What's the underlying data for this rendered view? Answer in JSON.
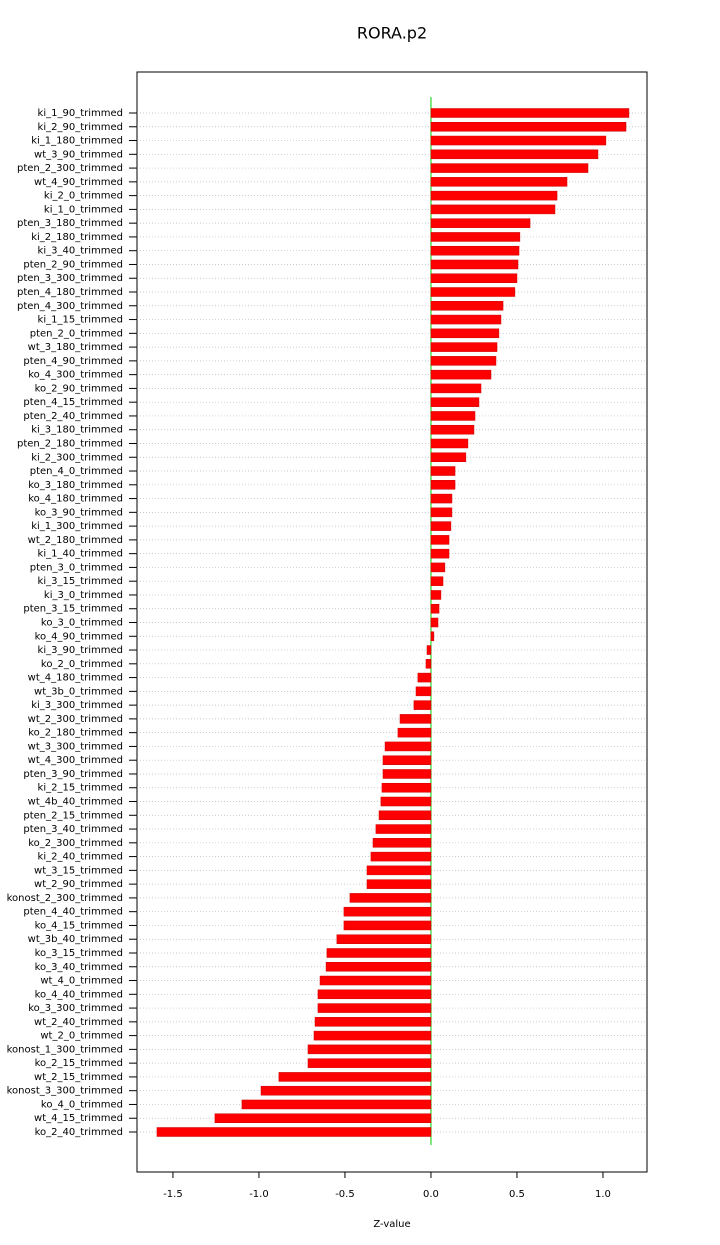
{
  "chart_data": {
    "type": "hbar",
    "title": "RORA.p2",
    "x_label": "Z-value",
    "categories": [
      "ki_1_90_trimmed",
      "ki_2_90_trimmed",
      "ki_1_180_trimmed",
      "wt_3_90_trimmed",
      "pten_2_300_trimmed",
      "wt_4_90_trimmed",
      "ki_2_0_trimmed",
      "ki_1_0_trimmed",
      "pten_3_180_trimmed",
      "ki_2_180_trimmed",
      "ki_3_40_trimmed",
      "pten_2_90_trimmed",
      "pten_3_300_trimmed",
      "pten_4_180_trimmed",
      "pten_4_300_trimmed",
      "ki_1_15_trimmed",
      "pten_2_0_trimmed",
      "wt_3_180_trimmed",
      "pten_4_90_trimmed",
      "ko_4_300_trimmed",
      "ko_2_90_trimmed",
      "pten_4_15_trimmed",
      "pten_2_40_trimmed",
      "ki_3_180_trimmed",
      "pten_2_180_trimmed",
      "ki_2_300_trimmed",
      "pten_4_0_trimmed",
      "ko_3_180_trimmed",
      "ko_4_180_trimmed",
      "ko_3_90_trimmed",
      "ki_1_300_trimmed",
      "wt_2_180_trimmed",
      "ki_1_40_trimmed",
      "pten_3_0_trimmed",
      "ki_3_15_trimmed",
      "ki_3_0_trimmed",
      "pten_3_15_trimmed",
      "ko_3_0_trimmed",
      "ko_4_90_trimmed",
      "ki_3_90_trimmed",
      "ko_2_0_trimmed",
      "wt_4_180_trimmed",
      "wt_3b_0_trimmed",
      "ki_3_300_trimmed",
      "wt_2_300_trimmed",
      "ko_2_180_trimmed",
      "wt_3_300_trimmed",
      "wt_4_300_trimmed",
      "pten_3_90_trimmed",
      "ki_2_15_trimmed",
      "wt_4b_40_trimmed",
      "pten_2_15_trimmed",
      "pten_3_40_trimmed",
      "ko_2_300_trimmed",
      "ki_2_40_trimmed",
      "wt_3_15_trimmed",
      "wt_2_90_trimmed",
      "konost_2_300_trimmed",
      "pten_4_40_trimmed",
      "ko_4_15_trimmed",
      "wt_3b_40_trimmed",
      "ko_3_15_trimmed",
      "ko_3_40_trimmed",
      "wt_4_0_trimmed",
      "ko_4_40_trimmed",
      "ko_3_300_trimmed",
      "wt_2_40_trimmed",
      "wt_2_0_trimmed",
      "konost_1_300_trimmed",
      "ko_2_15_trimmed",
      "wt_2_15_trimmed",
      "konost_3_300_trimmed",
      "ko_4_0_trimmed",
      "wt_4_15_trimmed",
      "ko_2_40_trimmed"
    ],
    "values": [
      1.151,
      1.134,
      1.017,
      0.971,
      0.913,
      0.791,
      0.733,
      0.721,
      0.576,
      0.517,
      0.512,
      0.506,
      0.5,
      0.488,
      0.419,
      0.407,
      0.395,
      0.384,
      0.378,
      0.349,
      0.291,
      0.279,
      0.256,
      0.25,
      0.215,
      0.203,
      0.14,
      0.14,
      0.122,
      0.122,
      0.116,
      0.105,
      0.105,
      0.081,
      0.07,
      0.058,
      0.047,
      0.041,
      0.017,
      -0.023,
      -0.029,
      -0.076,
      -0.087,
      -0.099,
      -0.18,
      -0.192,
      -0.267,
      -0.279,
      -0.279,
      -0.285,
      -0.291,
      -0.302,
      -0.32,
      -0.337,
      -0.349,
      -0.372,
      -0.372,
      -0.471,
      -0.506,
      -0.506,
      -0.547,
      -0.605,
      -0.61,
      -0.645,
      -0.657,
      -0.657,
      -0.674,
      -0.68,
      -0.715,
      -0.715,
      -0.884,
      -0.988,
      -1.099,
      -1.256,
      -1.593
    ],
    "color": "#ff0000",
    "xlim": [
      -1.709,
      1.256
    ],
    "xticks": [
      -1.5,
      {
        "value": -1,
        "label": "-1.0"
      },
      -0.5,
      {
        "value": 0,
        "label": "0.0"
      },
      0.5,
      {
        "value": 1,
        "label": "1.0"
      }
    ],
    "grid": true
  }
}
